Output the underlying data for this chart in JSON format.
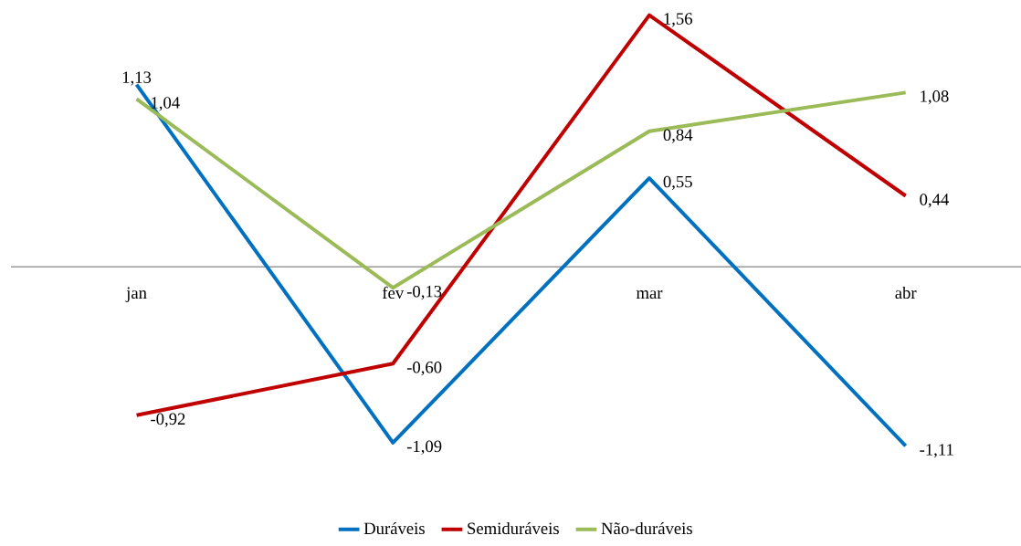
{
  "chart_data": {
    "type": "line",
    "categories": [
      "jan",
      "fev",
      "mar",
      "abr"
    ],
    "series": [
      {
        "name": "Duráveis",
        "color": "#0070c0",
        "values": [
          1.13,
          -1.09,
          0.55,
          -1.11
        ],
        "value_labels": [
          "1,13",
          "-1,09",
          "0,55",
          "-1,11"
        ]
      },
      {
        "name": "Semiduráveis",
        "color": "#c00000",
        "values": [
          -0.92,
          -0.6,
          1.56,
          0.44
        ],
        "value_labels": [
          "-0,92",
          "-0,60",
          "1,56",
          "0,44"
        ]
      },
      {
        "name": "Não-duráveis",
        "color": "#9bbb59",
        "values": [
          1.04,
          -0.13,
          0.84,
          1.08
        ],
        "value_labels": [
          "1,04",
          "-0,13",
          "0,84",
          "1,08"
        ]
      }
    ],
    "tick_labels": "x",
    "legend": "bottom",
    "grid": false,
    "marker": "none",
    "line_style": "solid"
  }
}
